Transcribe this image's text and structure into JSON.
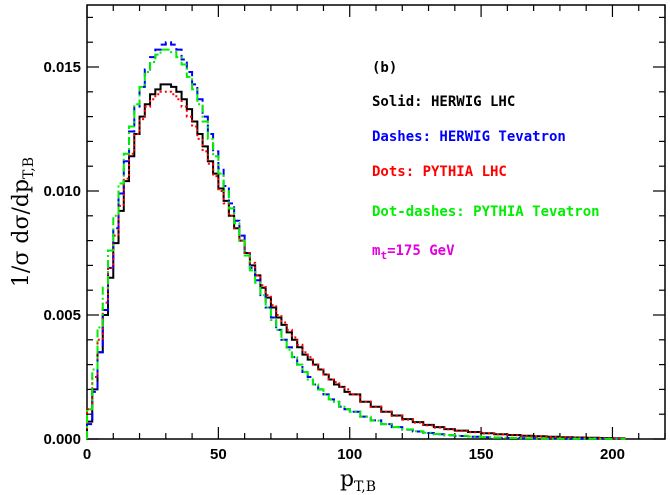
{
  "chart_data": {
    "type": "line",
    "xlabel": "p",
    "xlabel_sub": "T,B",
    "ylabel": "1/σ dσ/dp",
    "ylabel_sub": "T,B",
    "xlim": [
      0,
      220
    ],
    "ylim": [
      0,
      0.0175
    ],
    "xticks": [
      0,
      50,
      100,
      150,
      200
    ],
    "xtick_labels": [
      "0",
      "50",
      "100",
      "150",
      "200"
    ],
    "yticks": [
      0,
      0.005,
      0.01,
      0.015
    ],
    "ytick_labels": [
      "0.000",
      "0.005",
      "0.010",
      "0.015"
    ],
    "panel_label": "(b)",
    "annotation": {
      "prefix": "m",
      "sub": "t",
      "suffix": "=175 GeV",
      "color": "#e000e0"
    },
    "series": [
      {
        "name": "Solid: HERWIG LHC",
        "color": "#000000",
        "style": "solid",
        "x": [
          0,
          2,
          4,
          6,
          8,
          10,
          12,
          14,
          16,
          18,
          20,
          22,
          24,
          26,
          28,
          30,
          32,
          34,
          36,
          38,
          40,
          42,
          44,
          46,
          48,
          50,
          52,
          54,
          56,
          58,
          60,
          62,
          64,
          66,
          68,
          70,
          72,
          74,
          76,
          78,
          80,
          82,
          84,
          86,
          88,
          90,
          92,
          94,
          96,
          98,
          100,
          104,
          108,
          112,
          116,
          120,
          124,
          128,
          132,
          136,
          140,
          145,
          150,
          155,
          160,
          165,
          170,
          175,
          180,
          185,
          190,
          195,
          200
        ],
        "values": [
          0.0007,
          0.002,
          0.0035,
          0.005,
          0.0065,
          0.0079,
          0.0092,
          0.0104,
          0.0114,
          0.0123,
          0.013,
          0.0135,
          0.0139,
          0.0141,
          0.0143,
          0.0143,
          0.0142,
          0.014,
          0.0137,
          0.0133,
          0.0128,
          0.0123,
          0.0118,
          0.0112,
          0.0107,
          0.0101,
          0.0096,
          0.009,
          0.0085,
          0.008,
          0.0075,
          0.007,
          0.0066,
          0.0061,
          0.0057,
          0.0053,
          0.0049,
          0.0046,
          0.0043,
          0.004,
          0.0037,
          0.0034,
          0.0032,
          0.003,
          0.0028,
          0.0026,
          0.0024,
          0.0022,
          0.0021,
          0.0019,
          0.0018,
          0.0015,
          0.0013,
          0.0011,
          0.00095,
          0.0008,
          0.00068,
          0.00057,
          0.00048,
          0.0004,
          0.00034,
          0.00028,
          0.00023,
          0.00019,
          0.00016,
          0.00013,
          0.00011,
          9e-05,
          7e-05,
          6e-05,
          5e-05,
          4e-05,
          3e-05
        ]
      },
      {
        "name": "Dashes: HERWIG Tevatron",
        "color": "#0000ff",
        "style": "dashed",
        "x": [
          0,
          2,
          4,
          6,
          8,
          10,
          12,
          14,
          16,
          18,
          20,
          22,
          24,
          26,
          28,
          30,
          32,
          34,
          36,
          38,
          40,
          42,
          44,
          46,
          48,
          50,
          52,
          54,
          56,
          58,
          60,
          62,
          64,
          66,
          68,
          70,
          72,
          74,
          76,
          78,
          80,
          82,
          84,
          86,
          88,
          90,
          92,
          94,
          96,
          98,
          100,
          104,
          108,
          112,
          116,
          120,
          124,
          128,
          132,
          136,
          140,
          145,
          150,
          155,
          160,
          165,
          170,
          175,
          180,
          185,
          190,
          195,
          200
        ],
        "values": [
          0.0006,
          0.0019,
          0.0035,
          0.0052,
          0.0069,
          0.0085,
          0.0099,
          0.0112,
          0.0124,
          0.0134,
          0.0142,
          0.0149,
          0.0154,
          0.0157,
          0.0159,
          0.016,
          0.0159,
          0.0157,
          0.0153,
          0.0148,
          0.0143,
          0.0137,
          0.013,
          0.0123,
          0.0116,
          0.0109,
          0.0102,
          0.0095,
          0.0088,
          0.0082,
          0.0075,
          0.0069,
          0.0064,
          0.0058,
          0.0053,
          0.0049,
          0.0044,
          0.004,
          0.0037,
          0.0033,
          0.003,
          0.0027,
          0.0025,
          0.0022,
          0.002,
          0.0018,
          0.0016,
          0.0015,
          0.0013,
          0.0012,
          0.0011,
          0.0009,
          0.00075,
          0.0006,
          0.00048,
          0.00038,
          0.0003,
          0.00024,
          0.00019,
          0.00015,
          0.00012,
          9e-05,
          7e-05,
          5e-05,
          4e-05,
          3e-05,
          2e-05,
          2e-05,
          1e-05,
          1e-05,
          1e-05,
          1e-05,
          1e-05
        ]
      },
      {
        "name": "Dots: PYTHIA LHC",
        "color": "#ff0000",
        "style": "dotted",
        "x": [
          0,
          2,
          4,
          6,
          8,
          10,
          12,
          14,
          16,
          18,
          20,
          22,
          24,
          26,
          28,
          30,
          32,
          34,
          36,
          38,
          40,
          42,
          44,
          46,
          48,
          50,
          52,
          54,
          56,
          58,
          60,
          62,
          64,
          66,
          68,
          70,
          72,
          74,
          76,
          78,
          80,
          82,
          84,
          86,
          88,
          90,
          92,
          94,
          96,
          98,
          100,
          104,
          108,
          112,
          116,
          120,
          124,
          128,
          132,
          136,
          140,
          145,
          150,
          155,
          160,
          165,
          170,
          175,
          180,
          185,
          190,
          195,
          200
        ],
        "values": [
          0.0012,
          0.0025,
          0.004,
          0.0055,
          0.0069,
          0.0082,
          0.0094,
          0.0105,
          0.0115,
          0.0123,
          0.0129,
          0.0134,
          0.0137,
          0.0139,
          0.014,
          0.014,
          0.0139,
          0.0137,
          0.0134,
          0.013,
          0.0126,
          0.0121,
          0.0116,
          0.0111,
          0.0106,
          0.01,
          0.0095,
          0.009,
          0.0085,
          0.008,
          0.0075,
          0.0071,
          0.0066,
          0.0062,
          0.0058,
          0.0054,
          0.005,
          0.0047,
          0.0044,
          0.0041,
          0.0038,
          0.0035,
          0.0033,
          0.003,
          0.0028,
          0.0026,
          0.0024,
          0.0023,
          0.0021,
          0.002,
          0.0018,
          0.0015,
          0.0013,
          0.0011,
          0.00093,
          0.00078,
          0.00066,
          0.00055,
          0.00046,
          0.00039,
          0.00033,
          0.00027,
          0.00022,
          0.00018,
          0.00015,
          0.00012,
          0.0001,
          8e-05,
          7e-05,
          5e-05,
          4e-05,
          3e-05,
          3e-05
        ]
      },
      {
        "name": "Dot-dashes: PYTHIA Tevatron",
        "color": "#00ee00",
        "style": "dashdot",
        "x": [
          0,
          2,
          4,
          6,
          8,
          10,
          12,
          14,
          16,
          18,
          20,
          22,
          24,
          26,
          28,
          30,
          32,
          34,
          36,
          38,
          40,
          42,
          44,
          46,
          48,
          50,
          52,
          54,
          56,
          58,
          60,
          62,
          64,
          66,
          68,
          70,
          72,
          74,
          76,
          78,
          80,
          82,
          84,
          86,
          88,
          90,
          92,
          94,
          96,
          98,
          100,
          104,
          108,
          112,
          116,
          120,
          124,
          128,
          132,
          136,
          140,
          145,
          150,
          155,
          160,
          165,
          170,
          175,
          180,
          185,
          190,
          195,
          200
        ],
        "values": [
          0.0012,
          0.0028,
          0.0045,
          0.0061,
          0.0076,
          0.009,
          0.0103,
          0.0115,
          0.0126,
          0.0135,
          0.0142,
          0.0148,
          0.0152,
          0.0155,
          0.0157,
          0.0157,
          0.0156,
          0.0154,
          0.0151,
          0.0146,
          0.0141,
          0.0135,
          0.0128,
          0.0121,
          0.0114,
          0.0107,
          0.01,
          0.0093,
          0.0087,
          0.008,
          0.0074,
          0.0068,
          0.0063,
          0.0058,
          0.0053,
          0.0048,
          0.0044,
          0.004,
          0.0036,
          0.0033,
          0.003,
          0.0027,
          0.0024,
          0.0022,
          0.002,
          0.0018,
          0.0016,
          0.0015,
          0.0013,
          0.0012,
          0.0011,
          0.0009,
          0.00074,
          0.0006,
          0.00048,
          0.00039,
          0.00031,
          0.00025,
          0.0002,
          0.00016,
          0.00013,
          0.0001,
          7e-05,
          5e-05,
          4e-05,
          3e-05,
          2e-05,
          2e-05,
          1e-05,
          1e-05,
          1e-05,
          1e-05,
          1e-05
        ]
      }
    ]
  }
}
